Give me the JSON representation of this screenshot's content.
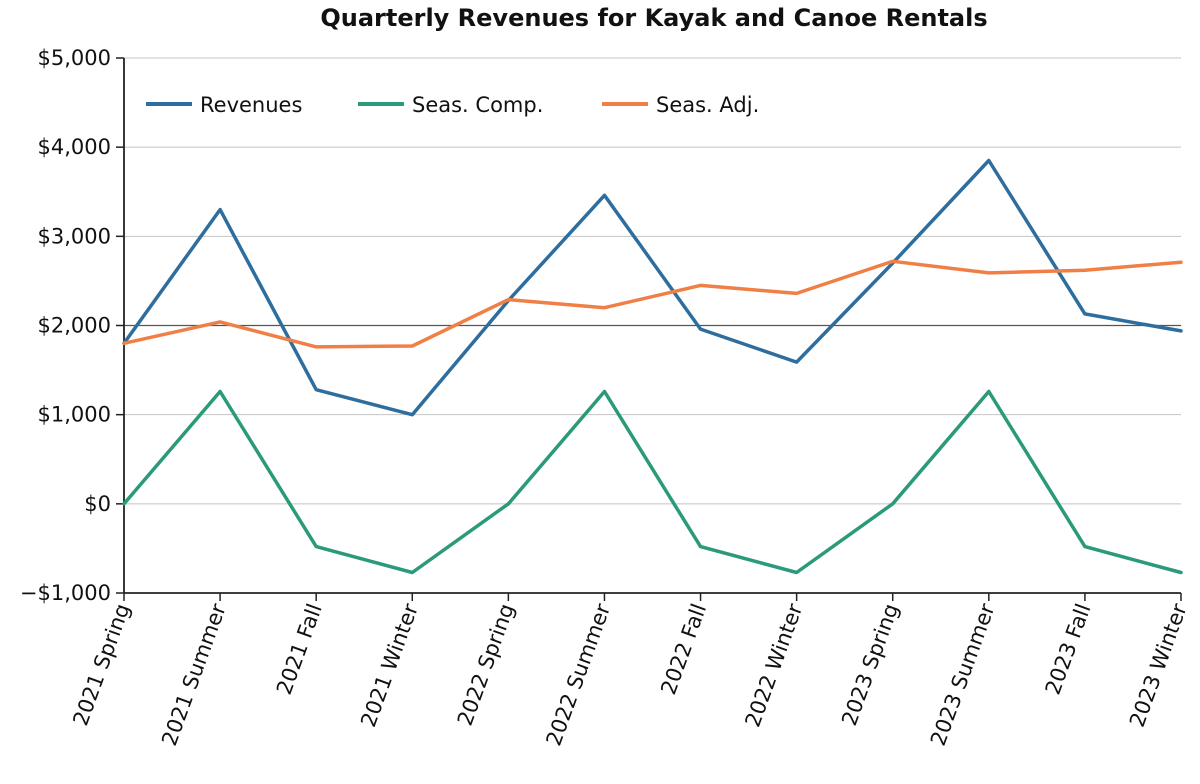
{
  "chart_data": {
    "type": "line",
    "title": "Quarterly Revenues for Kayak and Canoe Rentals",
    "xlabel": "",
    "ylabel": "",
    "categories": [
      "2021 Spring",
      "2021 Summer",
      "2021 Fall",
      "2021 Winter",
      "2022 Spring",
      "2022 Summer",
      "2022 Fall",
      "2022 Winter",
      "2023 Spring",
      "2023 Summer",
      "2023 Fall",
      "2023 Winter"
    ],
    "ylim": [
      -1000,
      5000
    ],
    "yticks": [
      -1000,
      0,
      1000,
      2000,
      3000,
      4000,
      5000
    ],
    "ytick_labels": [
      "−$1,000",
      "$0",
      "$1,000",
      "$2,000",
      "$3,000",
      "$4,000",
      "$5,000"
    ],
    "grid": true,
    "legend_position": "top-left",
    "series": [
      {
        "name": "Revenues",
        "color": "#2e6e9e",
        "values": [
          1800,
          3300,
          1280,
          1000,
          2280,
          3460,
          1960,
          1590,
          2700,
          3850,
          2130,
          1940
        ]
      },
      {
        "name": "Seas. Comp.",
        "color": "#2a9a7a",
        "values": [
          0,
          1260,
          -480,
          -770,
          0,
          1260,
          -480,
          -770,
          0,
          1260,
          -480,
          -770
        ]
      },
      {
        "name": "Seas. Adj.",
        "color": "#f07f45",
        "values": [
          1800,
          2040,
          1760,
          1770,
          2290,
          2200,
          2450,
          2360,
          2720,
          2590,
          2620,
          2710
        ]
      }
    ]
  }
}
